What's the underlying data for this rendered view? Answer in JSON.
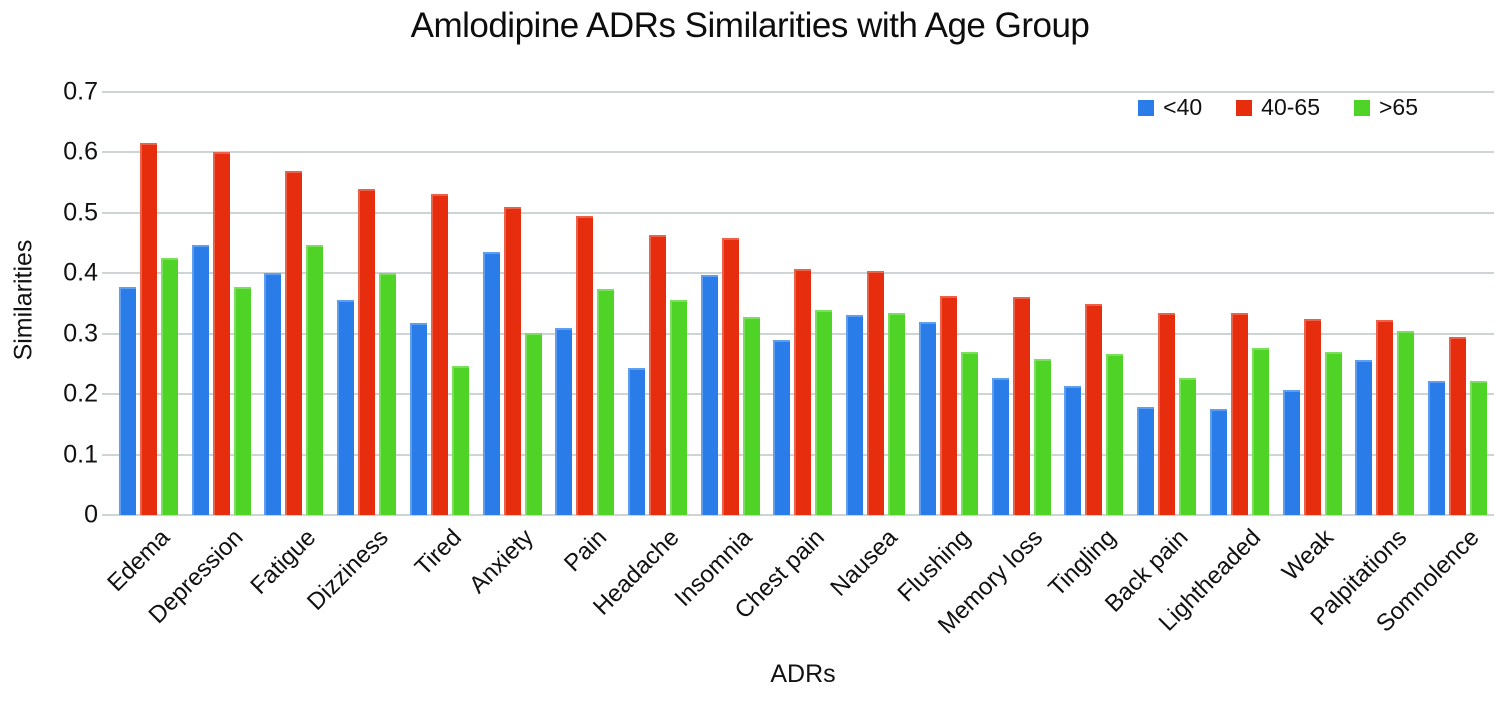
{
  "title": "Amlodipine ADRs Similarities with Age Group",
  "colors": {
    "series_blue": "#2a7de8",
    "series_red": "#e62d0e",
    "series_green": "#4fd326",
    "gridline": "#ccd4d6",
    "text": "#111111",
    "background": "#ffffff"
  },
  "chart_data": {
    "type": "bar",
    "title": "Amlodipine ADRs Similarities with Age Group",
    "xlabel": "ADRs",
    "ylabel": "Similarities",
    "ylim": [
      0,
      0.7
    ],
    "ytick_step": 0.1,
    "ytick_labels": [
      "0.7",
      "0.6",
      "0.5",
      "0.4",
      "0.3",
      "0.2",
      "0.1",
      "0"
    ],
    "grid": true,
    "legend_position": "top-right",
    "categories": [
      "Edema",
      "Depression",
      "Fatigue",
      "Dizziness",
      "Tired",
      "Anxiety",
      "Pain",
      "Headache",
      "Insomnia",
      "Chest pain",
      "Nausea",
      "Flushing",
      "Memory loss",
      "Tingling",
      "Back pain",
      "Lightheaded",
      "Weak",
      "Palpitations",
      "Somnolence"
    ],
    "series": [
      {
        "name": "<40",
        "color": "#2a7de8",
        "values": [
          0.378,
          0.447,
          0.4,
          0.355,
          0.318,
          0.436,
          0.31,
          0.243,
          0.397,
          0.29,
          0.331,
          0.32,
          0.227,
          0.214,
          0.178,
          0.175,
          0.207,
          0.256,
          0.222
        ]
      },
      {
        "name": "40-65",
        "color": "#e62d0e",
        "values": [
          0.615,
          0.6,
          0.57,
          0.54,
          0.532,
          0.509,
          0.494,
          0.463,
          0.458,
          0.407,
          0.404,
          0.363,
          0.36,
          0.35,
          0.334,
          0.334,
          0.325,
          0.323,
          0.295
        ]
      },
      {
        "name": ">65",
        "color": "#4fd326",
        "values": [
          0.425,
          0.378,
          0.447,
          0.4,
          0.246,
          0.301,
          0.374,
          0.355,
          0.328,
          0.339,
          0.334,
          0.269,
          0.258,
          0.266,
          0.227,
          0.277,
          0.269,
          0.305,
          0.221
        ]
      }
    ]
  }
}
